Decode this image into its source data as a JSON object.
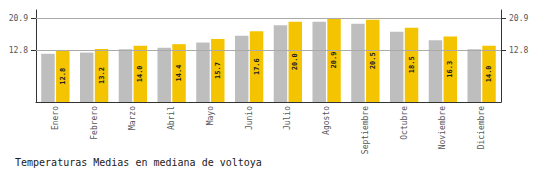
{
  "chart_data": {
    "type": "bar",
    "title": "Temperaturas Medias en mediana de voltoya",
    "categories": [
      "Enero",
      "Febrero",
      "Marzo",
      "Abril",
      "Mayo",
      "Junio",
      "Julio",
      "Agosto",
      "Septiembre",
      "Octubre",
      "Noviembre",
      "Diciembre"
    ],
    "series": [
      {
        "color": "#BEBEBE",
        "values": [
          12.0,
          12.3,
          13.1,
          13.5,
          14.8,
          16.5,
          19.1,
          20.0,
          19.5,
          17.5,
          15.4,
          13.1
        ]
      },
      {
        "color": "#F5C400",
        "values": [
          12.8,
          13.2,
          14.0,
          14.4,
          15.7,
          17.6,
          20.0,
          20.9,
          20.5,
          18.5,
          16.3,
          14.0
        ],
        "data_labels": true,
        "value_labels": [
          "12.8",
          "13.2",
          "14.0",
          "14.4",
          "15.7",
          "17.6",
          "20.0",
          "20.9",
          "20.5",
          "18.5",
          "16.3",
          "14.0"
        ]
      }
    ],
    "ylim": [
      0,
      22.9
    ],
    "yticks": [
      12.8,
      20.9
    ],
    "y2lim": [
      0,
      22.9
    ],
    "y2ticks": [
      12.8,
      20.9
    ],
    "grid": true
  }
}
